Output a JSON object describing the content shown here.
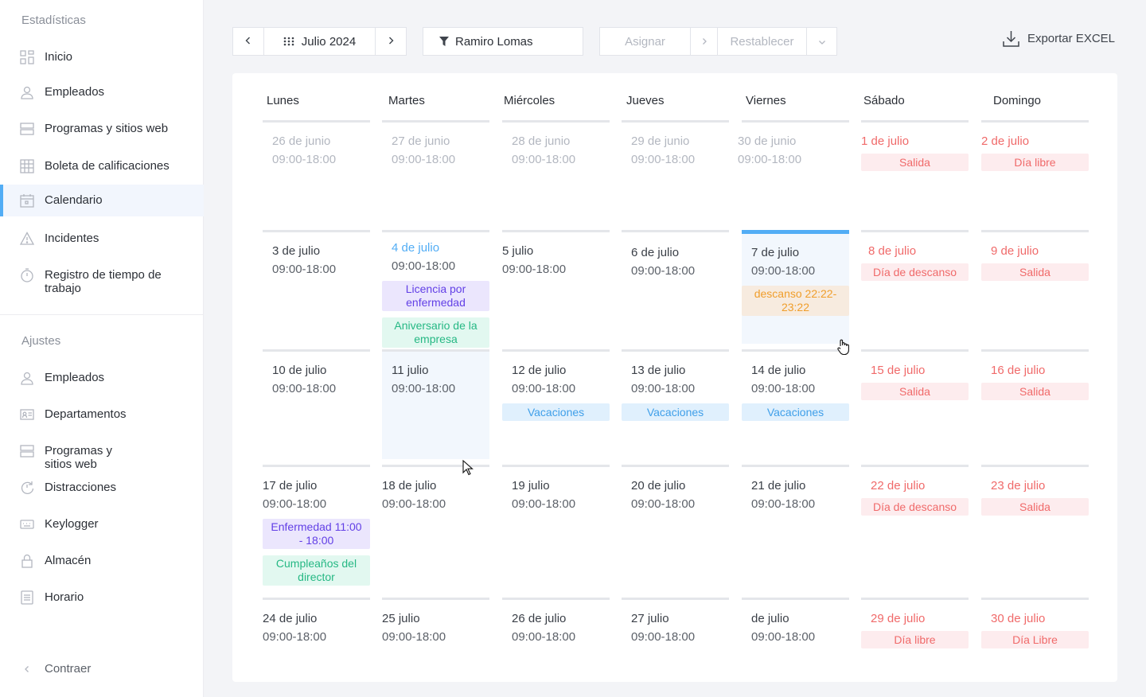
{
  "sidebar": {
    "stats_title": "Estadísticas",
    "stats_items": [
      {
        "label": "Inicio",
        "icon": "dashboard-icon"
      },
      {
        "label": "Empleados",
        "icon": "user-icon"
      },
      {
        "label": "Programas y sitios web",
        "icon": "list-icon"
      },
      {
        "label": "Boleta de calificaciones",
        "icon": "table-icon"
      },
      {
        "label": "Calendario",
        "icon": "calendar-icon"
      },
      {
        "label": "Incidentes",
        "icon": "warning-icon"
      },
      {
        "label": "Registro de tiempo de trabajo",
        "icon": "timer-icon"
      }
    ],
    "settings_title": "Ajustes",
    "settings_items": [
      {
        "label": "Empleados",
        "icon": "user-icon"
      },
      {
        "label": "Departamentos",
        "icon": "id-card-icon"
      },
      {
        "label": "Programas y sitios web",
        "icon": "list-icon"
      },
      {
        "label": "Distracciones",
        "icon": "clock-refresh-icon"
      },
      {
        "label": "Keylogger",
        "icon": "keyboard-icon"
      },
      {
        "label": "Almacén",
        "icon": "lock-icon"
      },
      {
        "label": "Horario",
        "icon": "schedule-icon"
      }
    ],
    "collapse": "Contraer"
  },
  "toolbar": {
    "month": "Julio 2024",
    "employee_filter": "Ramiro Lomas",
    "assign": "Asignar",
    "reset": "Restablecer",
    "export": "Exportar EXCEL"
  },
  "calendar": {
    "weekdays": [
      "Lunes",
      "Martes",
      "Miércoles",
      "Jueves",
      "Viernes",
      "Sábado",
      "Domingo"
    ],
    "weeks": [
      [
        {
          "date": "26 de junio",
          "time": "09:00-18:00",
          "muted": true
        },
        {
          "date": "27 de junio",
          "time": "09:00-18:00",
          "muted": true
        },
        {
          "date": "28 de junio",
          "time": "09:00-18:00",
          "muted": true
        },
        {
          "date": "29 de junio",
          "time": "09:00-18:00",
          "muted": true
        },
        {
          "date": "30 de junio",
          "time": "09:00-18:00",
          "muted": true
        },
        {
          "date": "1 de julio",
          "tags": [
            {
              "text": "Salida",
              "kind": "red"
            }
          ]
        },
        {
          "date": "2 de julio",
          "tags": [
            {
              "text": "Día libre",
              "kind": "red"
            }
          ]
        }
      ],
      [
        {
          "date": "3 de julio",
          "time": "09:00-18:00"
        },
        {
          "date": "4 de julio",
          "time": "09:00-18:00",
          "today": true,
          "tags": [
            {
              "text": "Licencia por enfermedad",
              "kind": "purple"
            },
            {
              "text": "Aniversario de la empresa",
              "kind": "green"
            }
          ]
        },
        {
          "date": "5 julio",
          "time": "09:00-18:00"
        },
        {
          "date": "6 de julio",
          "time": "09:00-18:00"
        },
        {
          "date": "7 de julio",
          "time": "09:00-18:00",
          "tags": [
            {
              "text": "descanso 22:22- 23:22",
              "kind": "orange"
            }
          ]
        },
        {
          "date": "8 de julio",
          "tags": [
            {
              "text": "Día de descanso",
              "kind": "red"
            }
          ]
        },
        {
          "date": "9 de julio",
          "tags": [
            {
              "text": "Salida",
              "kind": "red"
            }
          ]
        }
      ],
      [
        {
          "date": "10 de julio",
          "time": "09:00-18:00"
        },
        {
          "date": "11 julio",
          "time": "09:00-18:00"
        },
        {
          "date": "12 de julio",
          "time": "09:00-18:00",
          "tags": [
            {
              "text": "Vacaciones",
              "kind": "blue"
            }
          ]
        },
        {
          "date": "13 de julio",
          "time": "09:00-18:00",
          "tags": [
            {
              "text": "Vacaciones",
              "kind": "blue"
            }
          ]
        },
        {
          "date": "14 de julio",
          "time": "09:00-18:00",
          "tags": [
            {
              "text": "Vacaciones",
              "kind": "blue"
            }
          ]
        },
        {
          "date": "15 de julio",
          "tags": [
            {
              "text": "Salida",
              "kind": "red"
            }
          ]
        },
        {
          "date": "16 de julio",
          "tags": [
            {
              "text": "Salida",
              "kind": "red"
            }
          ]
        }
      ],
      [
        {
          "date": "17 de julio",
          "time": "09:00-18:00",
          "tags": [
            {
              "text": "Enfermedad 11:00 - 18:00",
              "kind": "purple"
            },
            {
              "text": "Cumpleaños del director",
              "kind": "green"
            }
          ]
        },
        {
          "date": "18 de julio",
          "time": "09:00-18:00"
        },
        {
          "date": "19 julio",
          "time": "09:00-18:00"
        },
        {
          "date": "20 de julio",
          "time": "09:00-18:00"
        },
        {
          "date": "21 de julio",
          "time": "09:00-18:00"
        },
        {
          "date": "22 de julio",
          "tags": [
            {
              "text": "Día de descanso",
              "kind": "red"
            }
          ]
        },
        {
          "date": "23 de julio",
          "tags": [
            {
              "text": "Salida",
              "kind": "red"
            }
          ]
        }
      ],
      [
        {
          "date": "24 de julio",
          "time": "09:00-18:00"
        },
        {
          "date": "25 julio",
          "time": "09:00-18:00"
        },
        {
          "date": "26 de julio",
          "time": "09:00-18:00"
        },
        {
          "date": "27 julio",
          "time": "09:00-18:00"
        },
        {
          "date": "de julio",
          "time": "09:00-18:00"
        },
        {
          "date": "29 de julio",
          "tags": [
            {
              "text": "Día libre",
              "kind": "red"
            }
          ]
        },
        {
          "date": "30 de julio",
          "tags": [
            {
              "text": "Día Libre",
              "kind": "red"
            }
          ]
        }
      ]
    ]
  }
}
